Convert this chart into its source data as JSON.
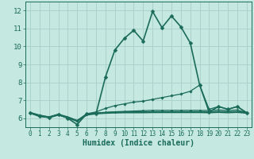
{
  "xlabel": "Humidex (Indice chaleur)",
  "background_color": "#c5e8e0",
  "grid_color": "#a8cfc8",
  "line_color": "#1a6b5a",
  "xlim": [
    -0.5,
    23.5
  ],
  "ylim": [
    5.5,
    12.5
  ],
  "yticks": [
    6,
    7,
    8,
    9,
    10,
    11,
    12
  ],
  "xticks": [
    0,
    1,
    2,
    3,
    4,
    5,
    6,
    7,
    8,
    9,
    10,
    11,
    12,
    13,
    14,
    15,
    16,
    17,
    18,
    19,
    20,
    21,
    22,
    23
  ],
  "series": [
    {
      "x": [
        0,
        1,
        2,
        3,
        4,
        5,
        6,
        7,
        8,
        9,
        10,
        11,
        12,
        13,
        14,
        15,
        16,
        17,
        18,
        19,
        20,
        21,
        22,
        23
      ],
      "y": [
        6.3,
        6.1,
        6.05,
        6.2,
        6.0,
        5.65,
        6.25,
        6.25,
        8.3,
        9.8,
        10.45,
        10.9,
        10.3,
        11.95,
        11.05,
        11.7,
        11.1,
        10.2,
        7.85,
        6.35,
        6.65,
        6.5,
        6.65,
        6.3
      ],
      "marker": "D",
      "markersize": 2.5,
      "linewidth": 1.2
    },
    {
      "x": [
        0,
        1,
        2,
        3,
        4,
        5,
        6,
        7,
        8,
        9,
        10,
        11,
        12,
        13,
        14,
        15,
        16,
        17,
        18,
        19,
        20,
        21,
        22,
        23
      ],
      "y": [
        6.3,
        6.15,
        6.05,
        6.2,
        6.05,
        5.85,
        6.25,
        6.35,
        6.55,
        6.7,
        6.8,
        6.9,
        6.95,
        7.05,
        7.15,
        7.25,
        7.35,
        7.5,
        7.85,
        6.5,
        6.65,
        6.5,
        6.65,
        6.3
      ],
      "marker": "D",
      "markersize": 1.8,
      "linewidth": 0.9
    },
    {
      "x": [
        0,
        1,
        2,
        3,
        4,
        5,
        6,
        7,
        8,
        9,
        10,
        11,
        12,
        13,
        14,
        15,
        16,
        17,
        18,
        19,
        20,
        21,
        22,
        23
      ],
      "y": [
        6.3,
        6.15,
        6.05,
        6.2,
        6.05,
        5.85,
        6.2,
        6.28,
        6.32,
        6.36,
        6.38,
        6.4,
        6.42,
        6.44,
        6.44,
        6.44,
        6.44,
        6.44,
        6.44,
        6.43,
        6.46,
        6.43,
        6.46,
        6.3
      ],
      "marker": "D",
      "markersize": 1.5,
      "linewidth": 0.9
    },
    {
      "x": [
        0,
        1,
        2,
        3,
        4,
        5,
        6,
        7,
        8,
        9,
        10,
        11,
        12,
        13,
        14,
        15,
        16,
        17,
        18,
        19,
        20,
        21,
        22,
        23
      ],
      "y": [
        6.3,
        6.15,
        6.05,
        6.2,
        6.05,
        5.85,
        6.2,
        6.27,
        6.3,
        6.32,
        6.33,
        6.33,
        6.33,
        6.34,
        6.34,
        6.34,
        6.34,
        6.34,
        6.34,
        6.33,
        6.35,
        6.33,
        6.35,
        6.3
      ],
      "marker": null,
      "markersize": 0,
      "linewidth": 1.8
    }
  ]
}
